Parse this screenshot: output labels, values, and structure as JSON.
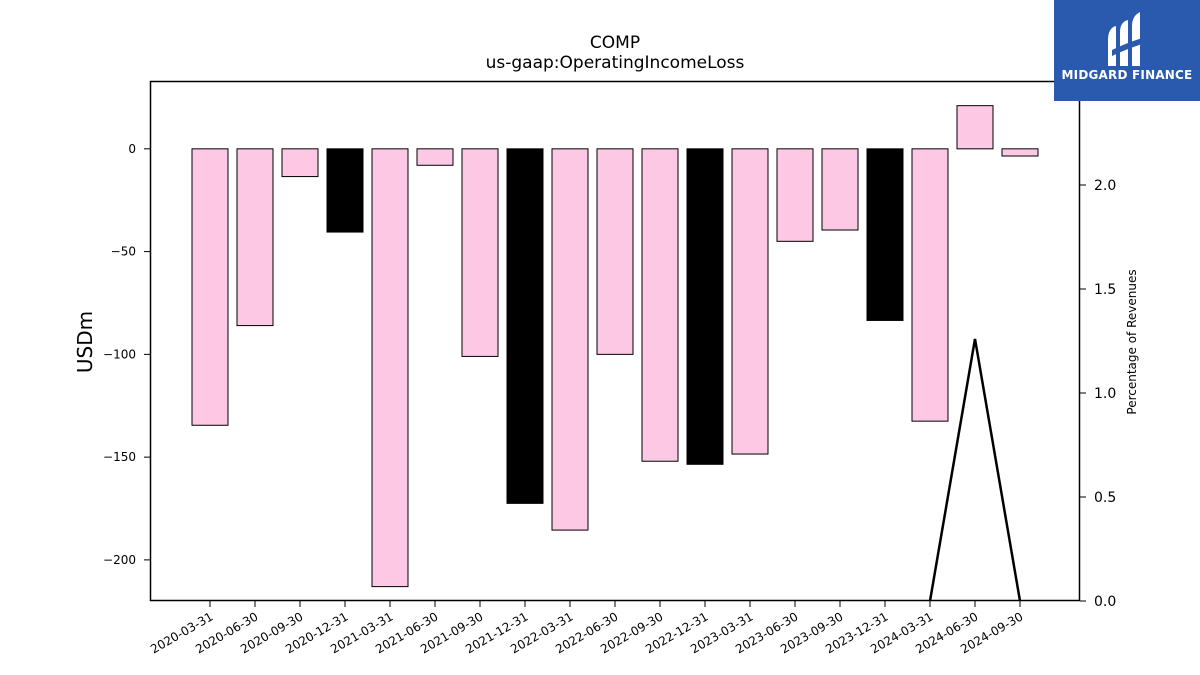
{
  "chart_data": {
    "type": "bar",
    "title": "COMP",
    "subtitle": "us-gaap:OperatingIncomeLoss",
    "ylabel": "USDm",
    "y2label": "Percentage of Revenues",
    "ylim": [
      -220,
      33
    ],
    "y2lim": [
      0,
      2.5
    ],
    "yticks": [
      0,
      -50,
      -100,
      -150,
      -200
    ],
    "y2ticks": [
      "0.0",
      "0.5",
      "1.0",
      "1.5",
      "2.0"
    ],
    "categories": [
      "2020-03-31",
      "2020-06-30",
      "2020-09-30",
      "2020-12-31",
      "2021-03-31",
      "2021-06-30",
      "2021-09-30",
      "2021-12-31",
      "2022-03-31",
      "2022-06-30",
      "2022-09-30",
      "2022-12-31",
      "2023-03-31",
      "2023-06-30",
      "2023-09-30",
      "2023-12-31",
      "2024-03-31",
      "2024-06-30",
      "2024-09-30"
    ],
    "values": [
      -134.5,
      -86,
      -13.5,
      -40.5,
      -213,
      -8,
      -101,
      -172.5,
      -185.5,
      -100,
      -152,
      -153.5,
      -148.5,
      -45,
      -39.5,
      -83.5,
      -132.5,
      21,
      -3.5
    ],
    "bar_colors": [
      "#fcc8e4",
      "#fcc8e4",
      "#fcc8e4",
      "#000000",
      "#fcc8e4",
      "#fcc8e4",
      "#fcc8e4",
      "#000000",
      "#fcc8e4",
      "#fcc8e4",
      "#fcc8e4",
      "#000000",
      "#fcc8e4",
      "#fcc8e4",
      "#fcc8e4",
      "#000000",
      "#fcc8e4",
      "#fcc8e4",
      "#fcc8e4"
    ],
    "line_series": {
      "name": "Percentage of Revenues",
      "axis": "right",
      "points": [
        [
          "2024-03-31",
          0.0
        ],
        [
          "2024-06-30",
          1.26
        ],
        [
          "2024-09-30",
          0.0
        ]
      ],
      "color": "#000000"
    },
    "grid": false
  },
  "logo": {
    "text": "MIDGARD FINANCE",
    "color": "#2a5aad"
  }
}
